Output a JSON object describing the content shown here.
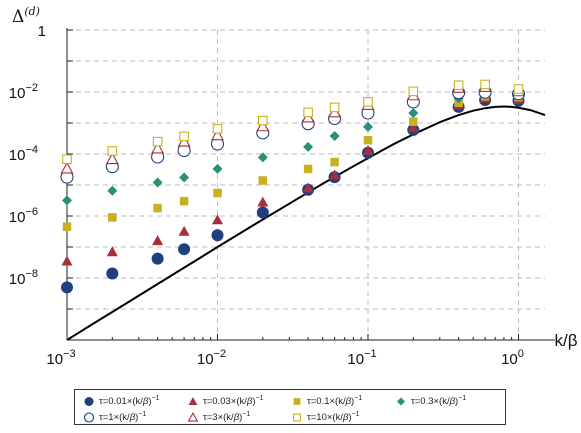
{
  "chart_data": {
    "type": "scatter",
    "title": "",
    "xlabel": "k/β",
    "ylabel": "Δ",
    "ylabel_superscript": "(d)",
    "x_scale": "log",
    "y_scale": "log",
    "xlim": [
      0.001,
      1.5
    ],
    "ylim": [
      1e-10,
      1
    ],
    "x_ticks": [
      {
        "value": 0.001,
        "base": "10",
        "exp": "−3"
      },
      {
        "value": 0.01,
        "base": "10",
        "exp": "−2"
      },
      {
        "value": 0.1,
        "base": "10",
        "exp": "−1"
      },
      {
        "value": 1,
        "base": "10",
        "exp": "0"
      }
    ],
    "y_ticks": [
      {
        "value": 1e-08,
        "base": "10",
        "exp": "−8"
      },
      {
        "value": 1e-06,
        "base": "10",
        "exp": "−6"
      },
      {
        "value": 0.0001,
        "base": "10",
        "exp": "−4"
      },
      {
        "value": 0.01,
        "base": "10",
        "exp": "−2"
      },
      {
        "value": 1,
        "base": "1",
        "exp": ""
      }
    ],
    "grid": true,
    "legend_position": "bottom",
    "x": [
      0.001,
      0.002,
      0.004,
      0.006,
      0.01,
      0.02,
      0.04,
      0.06,
      0.1,
      0.2,
      0.4,
      0.6,
      1.0
    ],
    "series": [
      {
        "name": "τ=0.01×(k/β)⁻¹",
        "marker": "circle",
        "filled": true,
        "color": "#1f3f7f",
        "values": [
          5e-09,
          1.4e-08,
          4.2e-08,
          8.5e-08,
          2.4e-07,
          1.3e-06,
          7e-06,
          1.8e-05,
          0.00011,
          0.0006,
          0.0033,
          0.0055,
          0.0052
        ]
      },
      {
        "name": "τ=0.03×(k/β)⁻¹",
        "marker": "triangle",
        "filled": true,
        "color": "#a3303a",
        "values": [
          3.5e-08,
          7e-08,
          1.6e-07,
          3.2e-07,
          7.5e-07,
          2.8e-06,
          8e-06,
          2.1e-05,
          0.00013,
          0.0007,
          0.0038,
          0.0062,
          0.0058
        ]
      },
      {
        "name": "τ=0.1×(k/β)⁻¹",
        "marker": "square",
        "filled": true,
        "color": "#c8b020",
        "values": [
          4.5e-07,
          9e-07,
          1.8e-06,
          3e-06,
          5.5e-06,
          1.4e-05,
          3.3e-05,
          5.5e-05,
          0.00028,
          0.0011,
          0.0045,
          0.0072,
          0.0068
        ]
      },
      {
        "name": "τ=0.3×(k/β)⁻¹",
        "marker": "diamond",
        "filled": true,
        "color": "#2a8f7a",
        "values": [
          3.2e-06,
          6.5e-06,
          1.2e-05,
          1.75e-05,
          3.3e-05,
          7.8e-05,
          0.00017,
          0.00038,
          0.00075,
          0.0021,
          0.0062,
          0.0088,
          0.0082
        ]
      },
      {
        "name": "τ=1×(k/β)⁻¹",
        "marker": "circle",
        "filled": false,
        "color": "#1f3f7f",
        "values": [
          1.8e-05,
          3.9e-05,
          8e-05,
          0.00013,
          0.00021,
          0.00048,
          0.00095,
          0.0014,
          0.0021,
          0.0048,
          0.0095,
          0.0098,
          0.0088
        ]
      },
      {
        "name": "τ=3×(k/β)⁻¹",
        "marker": "triangle",
        "filled": false,
        "color": "#a3303a",
        "values": [
          3.4e-05,
          6.8e-05,
          0.00015,
          0.00025,
          0.0004,
          0.00078,
          0.0015,
          0.0022,
          0.0038,
          0.0078,
          0.0135,
          0.0145,
          0.0105
        ]
      },
      {
        "name": "τ=10×(k/β)⁻¹",
        "marker": "square",
        "filled": false,
        "color": "#c8b020",
        "values": [
          6.8e-05,
          0.000125,
          0.00025,
          0.00037,
          0.00065,
          0.0012,
          0.0022,
          0.0032,
          0.0048,
          0.0105,
          0.0165,
          0.0175,
          0.0125
        ]
      }
    ],
    "curve": {
      "color": "#000000",
      "x": [
        0.001,
        0.0015,
        0.002,
        0.003,
        0.005,
        0.008,
        0.01,
        0.015,
        0.02,
        0.03,
        0.05,
        0.08,
        0.1,
        0.15,
        0.2,
        0.3,
        0.4,
        0.5,
        0.6,
        0.7,
        0.8,
        0.9,
        1.0,
        1.2,
        1.5
      ],
      "y": [
        1e-10,
        3.4e-10,
        8e-10,
        2.7e-09,
        1.25e-08,
        5.1e-08,
        1e-07,
        3.3e-07,
        7.7e-07,
        2.5e-06,
        1.1e-05,
        4e-05,
        7.4e-05,
        0.000215,
        0.00043,
        0.00106,
        0.0018,
        0.0025,
        0.003,
        0.0033,
        0.0034,
        0.0033,
        0.0031,
        0.0026,
        0.0018
      ]
    }
  },
  "legend": {
    "entries": [
      {
        "prefix": "τ=0.01×(k/",
        "beta": "β",
        "suffix": ")",
        "exp": "−1"
      },
      {
        "prefix": "τ=0.03×(k/",
        "beta": "β",
        "suffix": ")",
        "exp": "−1"
      },
      {
        "prefix": "τ=0.1×(k/",
        "beta": "β",
        "suffix": ")",
        "exp": "−1"
      },
      {
        "prefix": "τ=0.3×(k/",
        "beta": "β",
        "suffix": ")",
        "exp": "−1"
      },
      {
        "prefix": "τ=1×(k/",
        "beta": "β",
        "suffix": ")",
        "exp": "−1"
      },
      {
        "prefix": "τ=3×(k/",
        "beta": "β",
        "suffix": ")",
        "exp": "−1"
      },
      {
        "prefix": "τ=10×(k/",
        "beta": "β",
        "suffix": ")",
        "exp": "−1"
      }
    ]
  }
}
